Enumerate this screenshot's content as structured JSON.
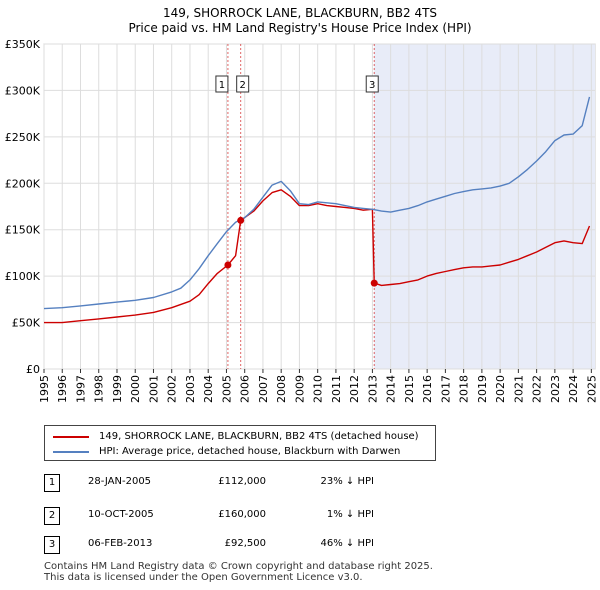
{
  "title_line1": "149, SHORROCK LANE, BLACKBURN, BB2 4TS",
  "title_line2": "Price paid vs. HM Land Registry's House Price Index (HPI)",
  "chart_data": {
    "type": "line",
    "title": "149, SHORROCK LANE, BLACKBURN, BB2 4TS — Price paid vs. HM Land Registry's House Price Index (HPI)",
    "xlabel": "",
    "ylabel": "",
    "xlim": [
      1995,
      2025.2
    ],
    "ylim": [
      0,
      350000
    ],
    "x_ticks": [
      1995,
      1996,
      1997,
      1998,
      1999,
      2000,
      2001,
      2002,
      2003,
      2004,
      2005,
      2006,
      2007,
      2008,
      2009,
      2010,
      2011,
      2012,
      2013,
      2014,
      2015,
      2016,
      2017,
      2018,
      2019,
      2020,
      2021,
      2022,
      2023,
      2024,
      2025
    ],
    "y_ticks": [
      {
        "value": 0,
        "label": "£0"
      },
      {
        "value": 50000,
        "label": "£50K"
      },
      {
        "value": 100000,
        "label": "£100K"
      },
      {
        "value": 150000,
        "label": "£150K"
      },
      {
        "value": 200000,
        "label": "£200K"
      },
      {
        "value": 250000,
        "label": "£250K"
      },
      {
        "value": 300000,
        "label": "£300K"
      },
      {
        "value": 350000,
        "label": "£350K"
      }
    ],
    "grid": true,
    "shaded_region": {
      "from": 2013.1,
      "to": 2025.2,
      "color": "#e8ecf8"
    },
    "series": [
      {
        "name": "149, SHORROCK LANE, BLACKBURN, BB2 4TS (detached house)",
        "color": "#cc0000",
        "x": [
          1995,
          1996,
          1997,
          1998,
          1999,
          2000,
          2001,
          2002,
          2003,
          2003.5,
          2004,
          2004.5,
          2005.08,
          2005.5,
          2005.78,
          2006,
          2006.5,
          2007,
          2007.5,
          2008,
          2008.5,
          2009,
          2009.5,
          2010,
          2010.5,
          2011,
          2011.5,
          2012,
          2012.5,
          2013.0,
          2013.1,
          2013.5,
          2014,
          2014.5,
          2015,
          2015.5,
          2016,
          2016.5,
          2017,
          2017.5,
          2018,
          2018.5,
          2019,
          2019.5,
          2020,
          2020.5,
          2021,
          2021.5,
          2022,
          2022.5,
          2023,
          2023.5,
          2024,
          2024.5,
          2024.9
        ],
        "values": [
          50000,
          50000,
          52000,
          54000,
          56000,
          58000,
          61000,
          66000,
          73000,
          80000,
          92000,
          103000,
          112000,
          122000,
          160000,
          163000,
          170000,
          181000,
          190000,
          193000,
          186000,
          176000,
          176000,
          178000,
          176000,
          175000,
          174000,
          173000,
          171000,
          172000,
          92500,
          90000,
          91000,
          92000,
          94000,
          96000,
          100000,
          103000,
          105000,
          107000,
          109000,
          110000,
          110000,
          111000,
          112000,
          115000,
          118000,
          122000,
          126000,
          131000,
          136000,
          138000,
          136000,
          135000,
          154000
        ]
      },
      {
        "name": "HPI: Average price, detached house, Blackburn with Darwen",
        "color": "#5580c0",
        "x": [
          1995,
          1996,
          1997,
          1998,
          1999,
          2000,
          2001,
          2002,
          2002.5,
          2003,
          2003.5,
          2004,
          2004.5,
          2005,
          2005.5,
          2006,
          2006.5,
          2007,
          2007.5,
          2008,
          2008.5,
          2009,
          2009.5,
          2010,
          2010.5,
          2011,
          2011.5,
          2012,
          2012.5,
          2013,
          2013.5,
          2014,
          2014.5,
          2015,
          2015.5,
          2016,
          2016.5,
          2017,
          2017.5,
          2018,
          2018.5,
          2019,
          2019.5,
          2020,
          2020.5,
          2021,
          2021.5,
          2022,
          2022.5,
          2023,
          2023.5,
          2024,
          2024.5,
          2024.9
        ],
        "values": [
          65000,
          66000,
          68000,
          70000,
          72000,
          74000,
          77000,
          83000,
          87000,
          96000,
          108000,
          122000,
          135000,
          148000,
          158000,
          163000,
          172000,
          185000,
          198000,
          202000,
          192000,
          178000,
          177000,
          180000,
          179000,
          178000,
          176000,
          174000,
          173000,
          172000,
          170000,
          169000,
          171000,
          173000,
          176000,
          180000,
          183000,
          186000,
          189000,
          191000,
          193000,
          194000,
          195000,
          197000,
          200000,
          207000,
          215000,
          224000,
          234000,
          246000,
          252000,
          253000,
          262000,
          293000
        ]
      }
    ],
    "markers": [
      {
        "label": "1",
        "x": 2005.08,
        "y": 112000
      },
      {
        "label": "2",
        "x": 2005.78,
        "y": 160000
      },
      {
        "label": "3",
        "x": 2013.1,
        "y": 92500
      }
    ]
  },
  "legend": {
    "property_label": "149, SHORROCK LANE, BLACKBURN, BB2 4TS (detached house)",
    "hpi_label": "HPI: Average price, detached house, Blackburn with Darwen",
    "property_color": "#cc0000",
    "hpi_color": "#5580c0"
  },
  "transactions": [
    {
      "num": "1",
      "date": "28-JAN-2005",
      "price": "£112,000",
      "relation": "23% ↓ HPI"
    },
    {
      "num": "2",
      "date": "10-OCT-2005",
      "price": "£160,000",
      "relation": "1% ↓ HPI"
    },
    {
      "num": "3",
      "date": "06-FEB-2013",
      "price": "£92,500",
      "relation": "46% ↓ HPI"
    }
  ],
  "footer_line1": "Contains HM Land Registry data © Crown copyright and database right 2025.",
  "footer_line2": "This data is licensed under the Open Government Licence v3.0."
}
